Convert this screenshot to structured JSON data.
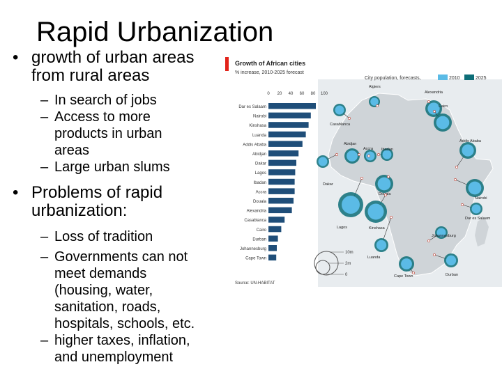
{
  "slide": {
    "title": "Rapid Urbanization",
    "bullets": [
      {
        "text": "growth of urban areas from rural areas",
        "lines": [
          "growth of urban areas",
          "from rural areas"
        ],
        "subs": [
          {
            "lines": [
              "In search of jobs"
            ]
          },
          {
            "lines": [
              "Access to more",
              "products in urban",
              "areas"
            ]
          },
          {
            "lines": [
              "Large urban slums"
            ]
          }
        ]
      },
      {
        "text": "Problems of rapid urbanization:",
        "lines": [
          "Problems of rapid",
          "urbanization:"
        ],
        "subs": [
          {
            "lines": [
              "Loss of tradition"
            ]
          },
          {
            "lines": [
              "Governments can not",
              "meet demands",
              "(housing, water,",
              "sanitation, roads,",
              "hospitals, schools, etc."
            ]
          },
          {
            "lines": [
              "higher taxes, inflation,",
              "and unemployment"
            ]
          }
        ]
      }
    ]
  },
  "chart_data": {
    "type": "bar",
    "title": "Growth of African cities",
    "subtitle": "% increase, 2010-2025 forecast",
    "source": "Source: UN-HABITAT",
    "xlim": [
      0,
      100
    ],
    "xticks": [
      0,
      20,
      40,
      60,
      80,
      100
    ],
    "categories": [
      "Dar es Salaam",
      "Nairobi",
      "Kinshasa",
      "Luanda",
      "Addis Ababa",
      "Abidjan",
      "Dakar",
      "Lagos",
      "Ibadan",
      "Accra",
      "Douala",
      "Alexandria",
      "Casablanca",
      "Cairo",
      "Durban",
      "Johannesburg",
      "Cape Town"
    ],
    "values": [
      85,
      76,
      72,
      67,
      61,
      54,
      50,
      48,
      47,
      47,
      45,
      42,
      29,
      23,
      17,
      15,
      14
    ],
    "map": {
      "legend_title": "City population, forecasts,",
      "legend_series": [
        {
          "name": "2010",
          "color": "#5bbbe6"
        },
        {
          "name": "2025",
          "color": "#0d6e78"
        }
      ],
      "size_legend": [
        "10m",
        "2m",
        "0"
      ],
      "city_labels": [
        "Algiers",
        "Alexandria",
        "Cairo",
        "Casablanca",
        "Abidjan",
        "Accra",
        "Ibadan",
        "Dakar",
        "Addis Ababa",
        "Douala",
        "Nairobi",
        "Lagos",
        "Kinshasa",
        "Dar es Salaam",
        "Johannesburg",
        "Luanda",
        "Cape Town",
        "Durban"
      ]
    }
  },
  "colors": {
    "bar": "#1f4e79",
    "accent_red": "#e2231a",
    "map_fill": "#cfd4d8",
    "map_bg": "#e8ecef"
  }
}
